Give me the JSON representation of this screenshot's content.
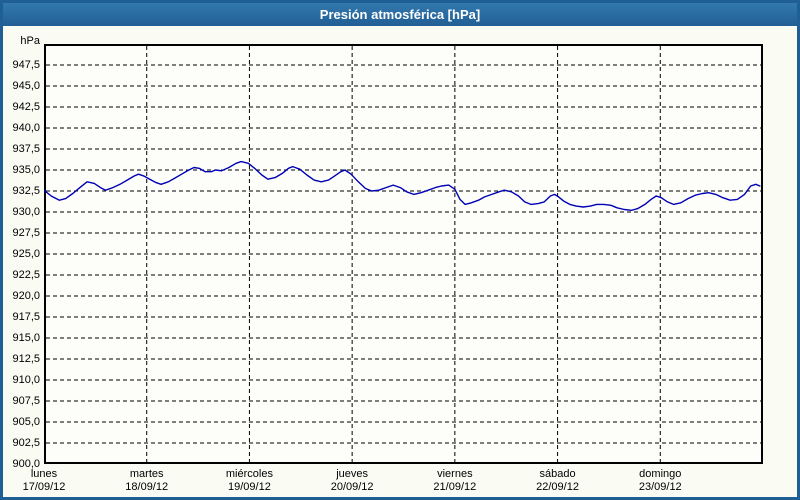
{
  "title": "Presión atmosférica [hPa]",
  "colors": {
    "titlebar_top": "#3379ae",
    "titlebar_bottom": "#215e94",
    "frame": "#1e5f96",
    "window_bg": "#fafcf4",
    "plot_bg": "#fdfefa",
    "axis": "#000000",
    "grid": "#000000",
    "line": "#0000b4",
    "text": "#000000"
  },
  "y_axis": {
    "unit_label": "hPa",
    "min": 900,
    "max": 950,
    "grid_step": 2.5,
    "ticks": [
      {
        "value": 947.5,
        "label": "947,5"
      },
      {
        "value": 945.0,
        "label": "945,0"
      },
      {
        "value": 942.5,
        "label": "942,5"
      },
      {
        "value": 940.0,
        "label": "940,0"
      },
      {
        "value": 937.5,
        "label": "937,5"
      },
      {
        "value": 935.0,
        "label": "935,0"
      },
      {
        "value": 932.5,
        "label": "932,5"
      },
      {
        "value": 930.0,
        "label": "930,0"
      },
      {
        "value": 927.5,
        "label": "927,5"
      },
      {
        "value": 925.0,
        "label": "925,0"
      },
      {
        "value": 922.5,
        "label": "922,5"
      },
      {
        "value": 920.0,
        "label": "920,0"
      },
      {
        "value": 917.5,
        "label": "917,5"
      },
      {
        "value": 915.0,
        "label": "915,0"
      },
      {
        "value": 912.5,
        "label": "912,5"
      },
      {
        "value": 910.0,
        "label": "910,0"
      },
      {
        "value": 907.5,
        "label": "907,5"
      },
      {
        "value": 905.0,
        "label": "905,0"
      },
      {
        "value": 902.5,
        "label": "902,5"
      },
      {
        "value": 900.0,
        "label": "900,0"
      }
    ]
  },
  "x_axis": {
    "day_slots": 7,
    "days": [
      {
        "name": "lunes",
        "date": "17/09/12"
      },
      {
        "name": "martes",
        "date": "18/09/12"
      },
      {
        "name": "miércoles",
        "date": "19/09/12"
      },
      {
        "name": "jueves",
        "date": "20/09/12"
      },
      {
        "name": "viernes",
        "date": "21/09/12"
      },
      {
        "name": "sábado",
        "date": "22/09/12"
      },
      {
        "name": "domingo",
        "date": "23/09/12"
      }
    ]
  },
  "chart_data": {
    "type": "line",
    "title": "Presión atmosférica [hPa]",
    "ylabel": "hPa",
    "ylim": [
      900,
      950
    ],
    "grid": "dashed-black",
    "legend": "none",
    "x_unit": "days from lunes 17/09/12 (0) to lunes 24/09/12 (7)",
    "series": [
      {
        "name": "Presión atmosférica",
        "color": "#0000b4",
        "points": [
          [
            0.0,
            932.6
          ],
          [
            0.07,
            931.9
          ],
          [
            0.15,
            931.4
          ],
          [
            0.21,
            931.6
          ],
          [
            0.28,
            932.2
          ],
          [
            0.35,
            932.9
          ],
          [
            0.42,
            933.6
          ],
          [
            0.49,
            933.4
          ],
          [
            0.55,
            932.9
          ],
          [
            0.6,
            932.6
          ],
          [
            0.67,
            932.9
          ],
          [
            0.74,
            933.3
          ],
          [
            0.81,
            933.8
          ],
          [
            0.88,
            934.3
          ],
          [
            0.92,
            934.5
          ],
          [
            0.97,
            934.3
          ],
          [
            1.03,
            933.9
          ],
          [
            1.09,
            933.5
          ],
          [
            1.14,
            933.3
          ],
          [
            1.21,
            933.6
          ],
          [
            1.27,
            934.0
          ],
          [
            1.34,
            934.5
          ],
          [
            1.41,
            935.0
          ],
          [
            1.46,
            935.3
          ],
          [
            1.51,
            935.2
          ],
          [
            1.57,
            934.8
          ],
          [
            1.63,
            934.8
          ],
          [
            1.67,
            935.0
          ],
          [
            1.73,
            934.9
          ],
          [
            1.8,
            935.3
          ],
          [
            1.87,
            935.8
          ],
          [
            1.92,
            936.0
          ],
          [
            1.99,
            935.8
          ],
          [
            2.05,
            935.2
          ],
          [
            2.12,
            934.4
          ],
          [
            2.18,
            933.9
          ],
          [
            2.25,
            934.1
          ],
          [
            2.32,
            934.6
          ],
          [
            2.38,
            935.2
          ],
          [
            2.42,
            935.4
          ],
          [
            2.49,
            935.1
          ],
          [
            2.56,
            934.4
          ],
          [
            2.63,
            933.8
          ],
          [
            2.7,
            933.6
          ],
          [
            2.77,
            933.8
          ],
          [
            2.83,
            934.3
          ],
          [
            2.89,
            934.8
          ],
          [
            2.93,
            935.0
          ],
          [
            2.99,
            934.5
          ],
          [
            3.06,
            933.6
          ],
          [
            3.13,
            932.8
          ],
          [
            3.19,
            932.5
          ],
          [
            3.26,
            932.6
          ],
          [
            3.33,
            932.9
          ],
          [
            3.4,
            933.2
          ],
          [
            3.47,
            932.9
          ],
          [
            3.53,
            932.4
          ],
          [
            3.6,
            932.1
          ],
          [
            3.67,
            932.3
          ],
          [
            3.74,
            932.6
          ],
          [
            3.81,
            932.9
          ],
          [
            3.87,
            933.1
          ],
          [
            3.94,
            933.2
          ],
          [
            4.0,
            932.7
          ],
          [
            4.05,
            931.5
          ],
          [
            4.1,
            930.9
          ],
          [
            4.16,
            931.1
          ],
          [
            4.23,
            931.4
          ],
          [
            4.29,
            931.8
          ],
          [
            4.36,
            932.1
          ],
          [
            4.43,
            932.4
          ],
          [
            4.48,
            932.6
          ],
          [
            4.55,
            932.4
          ],
          [
            4.62,
            931.9
          ],
          [
            4.68,
            931.2
          ],
          [
            4.74,
            930.9
          ],
          [
            4.81,
            931.0
          ],
          [
            4.87,
            931.2
          ],
          [
            4.93,
            931.9
          ],
          [
            4.97,
            932.1
          ],
          [
            5.01,
            931.8
          ],
          [
            5.06,
            931.3
          ],
          [
            5.12,
            930.9
          ],
          [
            5.18,
            930.7
          ],
          [
            5.25,
            930.6
          ],
          [
            5.32,
            930.7
          ],
          [
            5.38,
            930.9
          ],
          [
            5.45,
            930.9
          ],
          [
            5.52,
            930.8
          ],
          [
            5.58,
            930.5
          ],
          [
            5.65,
            930.3
          ],
          [
            5.72,
            930.2
          ],
          [
            5.78,
            930.4
          ],
          [
            5.85,
            930.9
          ],
          [
            5.91,
            931.5
          ],
          [
            5.96,
            931.9
          ],
          [
            6.01,
            931.7
          ],
          [
            6.07,
            931.2
          ],
          [
            6.13,
            930.9
          ],
          [
            6.2,
            931.1
          ],
          [
            6.27,
            931.6
          ],
          [
            6.34,
            932.0
          ],
          [
            6.41,
            932.2
          ],
          [
            6.47,
            932.3
          ],
          [
            6.54,
            932.1
          ],
          [
            6.61,
            931.7
          ],
          [
            6.68,
            931.4
          ],
          [
            6.75,
            931.5
          ],
          [
            6.82,
            932.1
          ],
          [
            6.88,
            933.1
          ],
          [
            6.93,
            933.3
          ],
          [
            6.97,
            933.1
          ]
        ]
      }
    ]
  }
}
